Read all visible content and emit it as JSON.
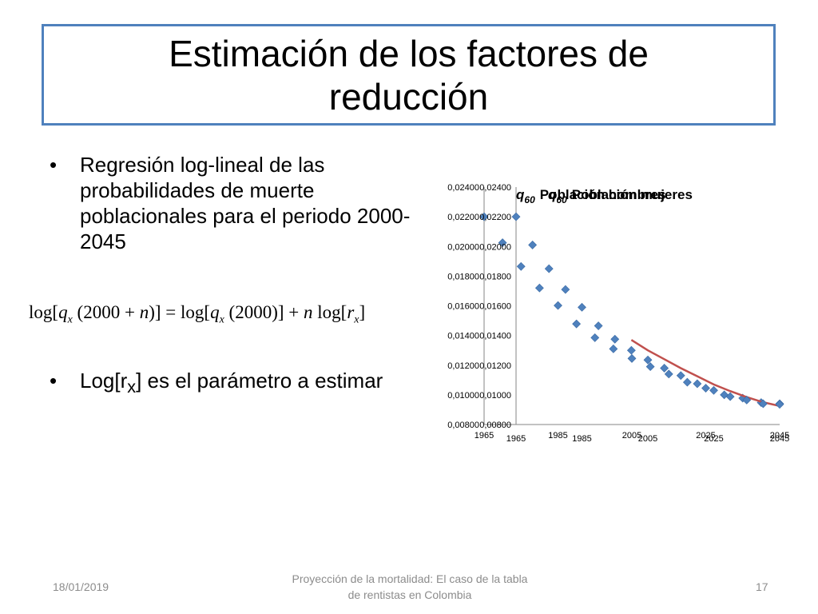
{
  "slide": {
    "title": "Estimación de los factores de reducción",
    "bullet1": "Regresión log-lineal de las probabilidades de muerte poblacionales para el periodo 2000-2045",
    "bullet2_pre": "Log[r",
    "bullet2_sub": "x",
    "bullet2_post": "] es el parámetro a estimar",
    "formula": {
      "log1": "log[",
      "q1": "q",
      "x1": "x",
      "p1": "(2000",
      "plus1": "+",
      "n1": "n",
      "p1end": ")]",
      "eq": "=",
      "log2": "log[",
      "q2": "q",
      "x2": "x",
      "p2": "(2000)]",
      "plus2": "+",
      "n2": "n",
      "log3": "log[",
      "r": "r",
      "x3": "x",
      "end": "]"
    }
  },
  "chart_data": [
    {
      "type": "scatter",
      "title": "q60 Población hombres",
      "title_parts": {
        "q": "q",
        "sub": "60",
        "rest": "Población hombres"
      },
      "x_tick_labels": [
        "1965",
        "1985",
        "2005",
        "2025",
        "2045"
      ],
      "y_tick_labels": [
        "0,00800",
        "0,01000",
        "0,01200",
        "0,01400",
        "0,01600",
        "0,01800",
        "0,02000",
        "0,02200",
        "0,02400"
      ],
      "ylim": [
        0.008,
        0.024
      ],
      "marker_color": "#4F81BD",
      "series": [
        {
          "x": [
            1965,
            1970,
            1975,
            1980,
            1985,
            1990,
            1995,
            2000,
            2005,
            2010,
            2015,
            2020,
            2025,
            2030,
            2035,
            2040,
            2045
          ],
          "values": [
            0.022,
            0.02025,
            0.01865,
            0.0172,
            0.01602,
            0.01478,
            0.01385,
            0.0131,
            0.01245,
            0.0119,
            0.0114,
            0.01085,
            0.01045,
            0.01,
            0.00978,
            0.00948,
            0.0094
          ]
        }
      ]
    },
    {
      "type": "scatter",
      "title": "q60 Población mujeres",
      "title_parts": {
        "q": "q",
        "sub": "60",
        "rest": "Población mujeres"
      },
      "x_tick_labels": [
        "1965",
        "1985",
        "2005",
        "2025",
        "2045"
      ],
      "y_tick_labels": [
        "0,00800",
        "0,01000",
        "0,01200",
        "0,01400",
        "0,01600",
        "0,01800",
        "0,02000",
        "0,02200",
        "0,02400"
      ],
      "ylim": [
        0.008,
        0.024
      ],
      "marker_color": "#4F81BD",
      "series": [
        {
          "x": [
            1965,
            1970,
            1975,
            1980,
            1985,
            1990,
            1995,
            2000,
            2005,
            2010,
            2015,
            2020,
            2025,
            2030,
            2035,
            2040,
            2045
          ],
          "values": [
            0.022,
            0.0201,
            0.0185,
            0.0171,
            0.0159,
            0.01465,
            0.01375,
            0.013,
            0.01235,
            0.0118,
            0.0113,
            0.01075,
            0.0103,
            0.00988,
            0.00965,
            0.0094,
            0.00936
          ]
        }
      ],
      "fit": {
        "color": "#C0504D",
        "x": [
          2000,
          2005,
          2010,
          2015,
          2020,
          2025,
          2030,
          2035,
          2040,
          2045
        ],
        "values": [
          0.0137,
          0.013,
          0.0124,
          0.0118,
          0.01125,
          0.0107,
          0.01025,
          0.00985,
          0.0095,
          0.00925
        ]
      }
    }
  ],
  "footer": {
    "date": "18/01/2019",
    "center": "Proyección de la mortalidad: El caso de la tabla de rentistas en Colombia",
    "page": "17"
  }
}
